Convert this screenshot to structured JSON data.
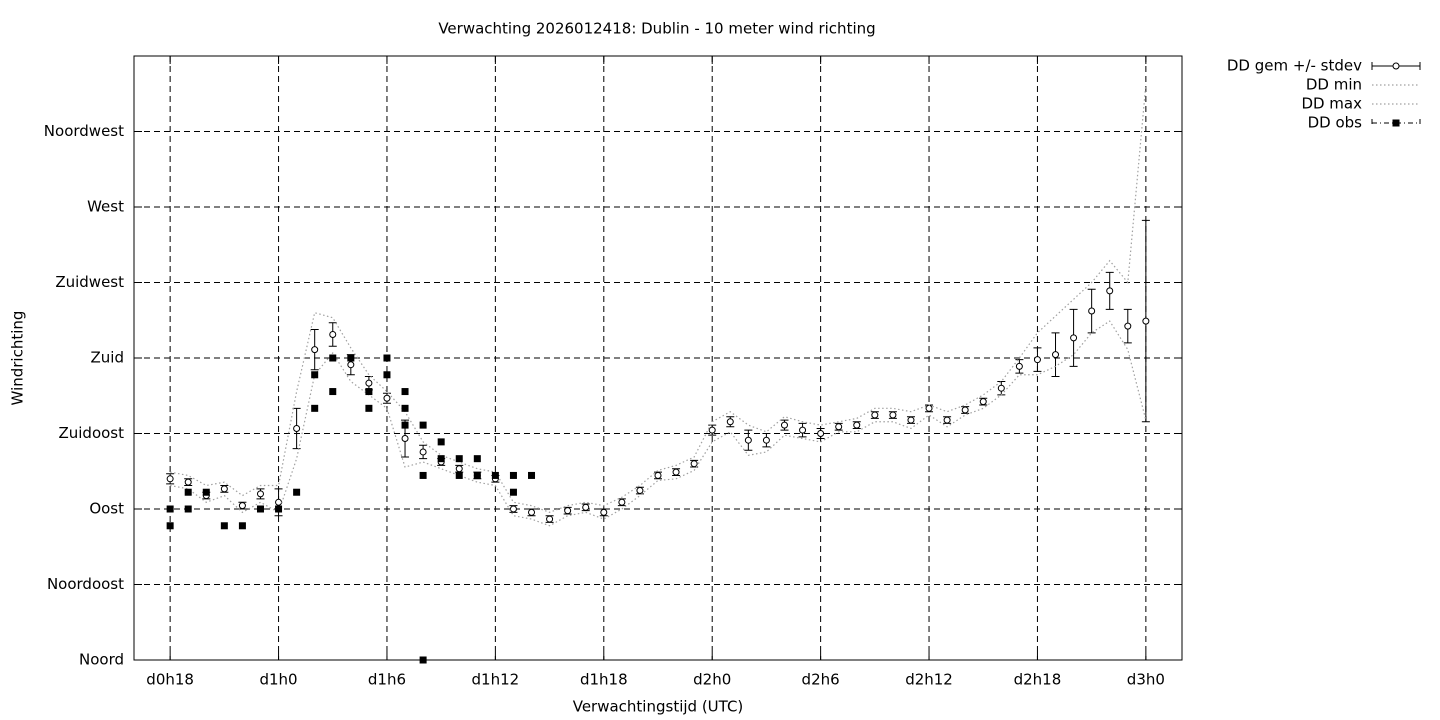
{
  "chart_data": {
    "type": "line",
    "title": "Verwachting 2026012418: Dublin - 10 meter wind richting",
    "xlabel": "Verwachtingstijd (UTC)",
    "ylabel": "Windrichting",
    "xlim": [
      16,
      74
    ],
    "xticks": [
      {
        "value": 18,
        "label": "d0h18"
      },
      {
        "value": 24,
        "label": "d1h0"
      },
      {
        "value": 30,
        "label": "d1h6"
      },
      {
        "value": 36,
        "label": "d1h12"
      },
      {
        "value": 42,
        "label": "d1h18"
      },
      {
        "value": 48,
        "label": "d2h0"
      },
      {
        "value": 54,
        "label": "d2h6"
      },
      {
        "value": 60,
        "label": "d2h12"
      },
      {
        "value": 66,
        "label": "d2h18"
      },
      {
        "value": 72,
        "label": "d3h0"
      }
    ],
    "ylim": [
      0,
      360
    ],
    "yticks": [
      {
        "value": 0,
        "label": "Noord"
      },
      {
        "value": 45,
        "label": "Noordoost"
      },
      {
        "value": 90,
        "label": "Oost"
      },
      {
        "value": 135,
        "label": "Zuidoost"
      },
      {
        "value": 180,
        "label": "Zuid"
      },
      {
        "value": 225,
        "label": "Zuidwest"
      },
      {
        "value": 270,
        "label": "West"
      },
      {
        "value": 315,
        "label": "Noordwest"
      }
    ],
    "grid": true,
    "legend": "right",
    "x": [
      18,
      19,
      20,
      21,
      22,
      23,
      24,
      25,
      26,
      27,
      28,
      29,
      30,
      31,
      32,
      33,
      34,
      35,
      36,
      37,
      38,
      39,
      40,
      41,
      42,
      43,
      44,
      45,
      46,
      47,
      48,
      49,
      50,
      51,
      52,
      53,
      54,
      55,
      56,
      57,
      58,
      59,
      60,
      61,
      62,
      63,
      64,
      65,
      66,
      67,
      68,
      69,
      70,
      71,
      72
    ],
    "series": [
      {
        "name": "DD gem +/- stdev",
        "color": "#000000",
        "style": "errorbars",
        "values": [
          108,
          106,
          98,
          102,
          92,
          99,
          94,
          138,
          185,
          194,
          176,
          165,
          156,
          132,
          124,
          118,
          114,
          110,
          108,
          90,
          88,
          84,
          89,
          91,
          88,
          94,
          101,
          110,
          112,
          117,
          137,
          142,
          131,
          131,
          140,
          137,
          135,
          139,
          140,
          146,
          146,
          143,
          150,
          143,
          149,
          154,
          162,
          175,
          179,
          182,
          192,
          208,
          220,
          199,
          202
        ],
        "error": [
          3,
          2,
          2,
          2,
          2,
          3,
          8,
          12,
          12,
          7,
          6,
          4,
          3,
          11,
          4,
          2,
          2,
          2,
          2,
          2,
          2,
          2,
          2,
          2,
          2,
          2,
          2,
          2,
          2,
          2,
          3,
          3,
          6,
          4,
          3,
          4,
          3,
          2,
          2,
          2,
          2,
          2,
          2,
          2,
          2,
          2,
          4,
          4,
          7,
          13,
          17,
          13,
          11,
          10,
          60
        ]
      },
      {
        "name": "DD min",
        "color": "#a0a0a0",
        "style": "dotted",
        "values": [
          104,
          102,
          94,
          98,
          88,
          94,
          88,
          120,
          170,
          183,
          166,
          158,
          150,
          115,
          118,
          114,
          110,
          106,
          104,
          86,
          84,
          80,
          86,
          88,
          84,
          90,
          98,
          107,
          108,
          113,
          130,
          136,
          122,
          124,
          134,
          132,
          130,
          136,
          136,
          142,
          142,
          138,
          146,
          139,
          146,
          150,
          158,
          170,
          170,
          175,
          182,
          195,
          202,
          185,
          143
        ]
      },
      {
        "name": "DD max",
        "color": "#a0a0a0",
        "style": "dotted",
        "values": [
          112,
          110,
          104,
          106,
          98,
          104,
          104,
          160,
          207,
          204,
          186,
          170,
          160,
          148,
          130,
          122,
          118,
          114,
          112,
          94,
          92,
          88,
          92,
          94,
          92,
          97,
          104,
          113,
          116,
          121,
          142,
          148,
          140,
          136,
          145,
          142,
          140,
          142,
          144,
          150,
          150,
          148,
          152,
          148,
          152,
          158,
          166,
          180,
          195,
          205,
          215,
          225,
          238,
          225,
          343
        ]
      },
      {
        "name": "DD obs",
        "color": "#000000",
        "style": "points",
        "x": [
          18,
          18,
          19,
          19,
          20,
          21,
          22,
          23,
          24,
          25,
          26,
          26,
          27,
          27,
          28,
          29,
          29,
          30,
          30,
          31,
          31,
          31,
          32,
          32,
          32,
          33,
          33,
          34,
          34,
          35,
          35,
          36,
          37,
          37,
          38
        ],
        "values": [
          90,
          80,
          100,
          90,
          100,
          80,
          80,
          90,
          90,
          100,
          150,
          170,
          160,
          180,
          180,
          150,
          160,
          180,
          170,
          160,
          150,
          140,
          110,
          140,
          0,
          130,
          120,
          120,
          110,
          120,
          110,
          110,
          110,
          100,
          110
        ]
      }
    ]
  }
}
